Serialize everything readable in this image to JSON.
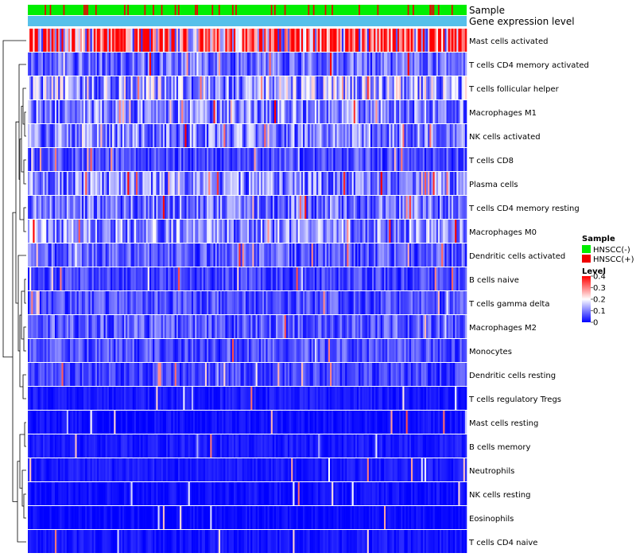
{
  "chart_data": {
    "type": "heatmap",
    "title": "",
    "annotation_rows": [
      "Sample",
      "Gene expression level"
    ],
    "rows": [
      "Mast cells activated",
      "T cells CD4 memory activated",
      "T cells follicular helper",
      "Macrophages M1",
      "NK cells activated",
      "T cells CD8",
      "Plasma cells",
      "T cells CD4 memory resting",
      "Macrophages M0",
      "Dendritic cells activated",
      "B cells naive",
      "T cells gamma delta",
      "Macrophages M2",
      "Monocytes",
      "Dendritic cells resting",
      "T cells regulatory  Tregs",
      "Mast cells resting",
      "B cells memory",
      "Neutrophils",
      "NK cells resting",
      "Eosinophils",
      "T cells CD4 naive"
    ],
    "row_mean_levels": [
      0.32,
      0.08,
      0.13,
      0.1,
      0.1,
      0.06,
      0.1,
      0.09,
      0.11,
      0.07,
      0.05,
      0.06,
      0.07,
      0.06,
      0.05,
      0.02,
      0.01,
      0.02,
      0.02,
      0.01,
      0.005,
      0.015
    ],
    "n_samples": 260,
    "hnscc_positive_fraction": 0.15,
    "legend": {
      "sample_title": "Sample",
      "sample_entries": [
        {
          "label": "HNSCC(-)",
          "color": "#00ee00"
        },
        {
          "label": "HNSCC(+)",
          "color": "#ee0000"
        }
      ],
      "level_title": "Level",
      "level_ticks": [
        "0.4",
        "0.3",
        "0.2",
        "0.1",
        "0"
      ],
      "level_range": [
        0,
        0.4
      ],
      "level_colors": [
        "#0000ff",
        "#ffffff",
        "#ff0000"
      ]
    },
    "gene_expression_color": "#56c0ea"
  }
}
